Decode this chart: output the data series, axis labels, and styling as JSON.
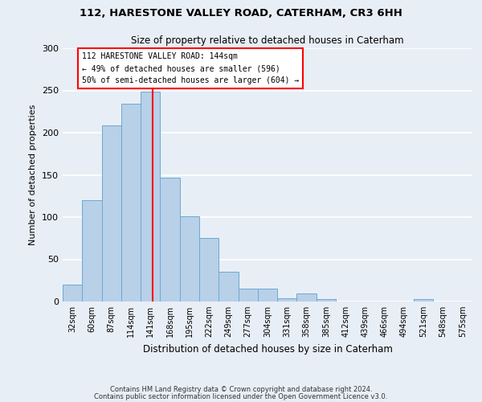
{
  "title_line1": "112, HARESTONE VALLEY ROAD, CATERHAM, CR3 6HH",
  "title_line2": "Size of property relative to detached houses in Caterham",
  "xlabel": "Distribution of detached houses by size in Caterham",
  "ylabel": "Number of detached properties",
  "bar_labels": [
    "32sqm",
    "60sqm",
    "87sqm",
    "114sqm",
    "141sqm",
    "168sqm",
    "195sqm",
    "222sqm",
    "249sqm",
    "277sqm",
    "304sqm",
    "331sqm",
    "358sqm",
    "385sqm",
    "412sqm",
    "439sqm",
    "466sqm",
    "494sqm",
    "521sqm",
    "548sqm",
    "575sqm"
  ],
  "bar_values": [
    20,
    120,
    209,
    234,
    249,
    147,
    101,
    75,
    35,
    15,
    15,
    4,
    10,
    3,
    0,
    0,
    0,
    0,
    3,
    0,
    0
  ],
  "bar_color": "#b8d0e8",
  "bar_edge_color": "#6aaad4",
  "background_color": "#e8eef6",
  "plot_bg_color": "#e8eef6",
  "grid_color": "#ffffff",
  "vline_color": "red",
  "vline_x": 4.11,
  "annotation_text": "112 HARESTONE VALLEY ROAD: 144sqm\n← 49% of detached houses are smaller (596)\n50% of semi-detached houses are larger (604) →",
  "annotation_box_color": "white",
  "annotation_box_edge_color": "red",
  "ylim": [
    0,
    300
  ],
  "yticks": [
    0,
    50,
    100,
    150,
    200,
    250,
    300
  ],
  "footnote1": "Contains HM Land Registry data © Crown copyright and database right 2024.",
  "footnote2": "Contains public sector information licensed under the Open Government Licence v3.0."
}
